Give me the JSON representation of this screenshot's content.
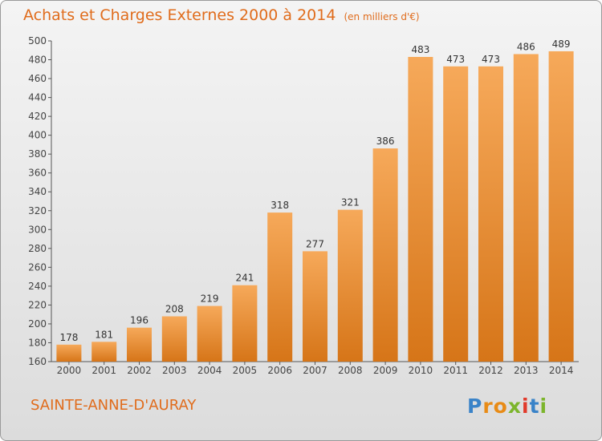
{
  "header": {
    "title": "Achats et Charges Externes 2000 à 2014",
    "unit": "(en milliers d'€)"
  },
  "footer": {
    "location": "SAINTE-ANNE-D'AURAY",
    "logo": "Proxiti"
  },
  "colors": {
    "bar_light": "#f6a95a",
    "bar_dark": "#d67518",
    "title": "#e06c1c",
    "logo_letters": [
      "#3a83c8",
      "#e88b16",
      "#e88b16",
      "#7cb52c",
      "#e13a2b",
      "#3a83c8",
      "#7cb52c"
    ]
  },
  "chart_data": {
    "type": "bar",
    "title": "Achats et Charges Externes 2000 à 2014",
    "subtitle": "(en milliers d'€)",
    "categories": [
      "2000",
      "2001",
      "2002",
      "2003",
      "2004",
      "2005",
      "2006",
      "2007",
      "2008",
      "2009",
      "2010",
      "2011",
      "2012",
      "2013",
      "2014"
    ],
    "values": [
      178,
      181,
      196,
      208,
      219,
      241,
      318,
      277,
      321,
      386,
      483,
      473,
      473,
      486,
      489
    ],
    "ylim": [
      160,
      500
    ],
    "yticks": [
      160,
      180,
      200,
      220,
      240,
      260,
      280,
      300,
      320,
      340,
      360,
      380,
      400,
      420,
      440,
      460,
      480,
      500
    ],
    "xlabel": "",
    "ylabel": "",
    "grid": false,
    "data_labels": true
  }
}
